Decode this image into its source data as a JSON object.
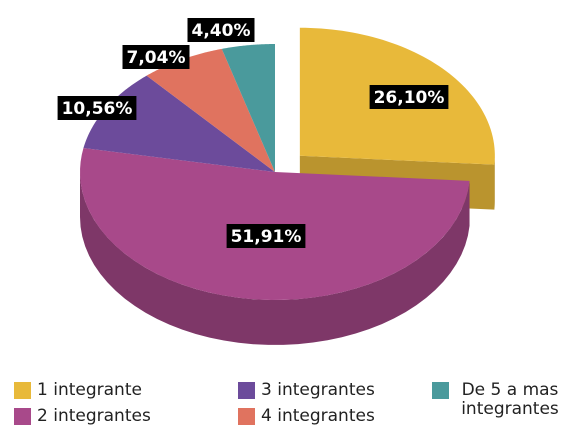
{
  "chart_data": {
    "type": "pie",
    "categories": [
      "1 integrante",
      "2 integrantes",
      "3 integrantes",
      "4 integrantes",
      "De 5 a mas integrantes"
    ],
    "values": [
      26.1,
      51.91,
      10.56,
      7.04,
      4.4
    ],
    "value_labels": [
      "26,10%",
      "51,91%",
      "10,56%",
      "7,04%",
      "4,40%"
    ],
    "colors": [
      "#e8b93a",
      "#a8498a",
      "#6c4b9b",
      "#e0735f",
      "#4a9a9c"
    ],
    "legend": "bottom"
  }
}
